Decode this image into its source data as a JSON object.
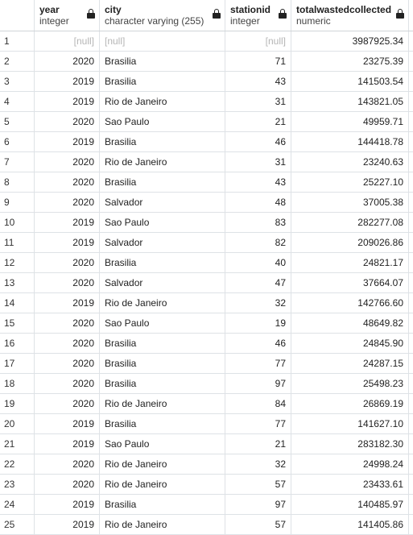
{
  "columns": [
    {
      "name": "year",
      "type": "integer"
    },
    {
      "name": "city",
      "type": "character varying (255)"
    },
    {
      "name": "stationid",
      "type": "integer"
    },
    {
      "name": "totalwastedcollected",
      "type": "numeric"
    }
  ],
  "null_label": "[null]",
  "rows": [
    {
      "n": "1",
      "year": "[null]",
      "city": "[null]",
      "stationid": "[null]",
      "total": "3987925.34"
    },
    {
      "n": "2",
      "year": "2020",
      "city": "Brasilia",
      "stationid": "71",
      "total": "23275.39"
    },
    {
      "n": "3",
      "year": "2019",
      "city": "Brasilia",
      "stationid": "43",
      "total": "141503.54"
    },
    {
      "n": "4",
      "year": "2019",
      "city": "Rio de Janeiro",
      "stationid": "31",
      "total": "143821.05"
    },
    {
      "n": "5",
      "year": "2020",
      "city": "Sao Paulo",
      "stationid": "21",
      "total": "49959.71"
    },
    {
      "n": "6",
      "year": "2019",
      "city": "Brasilia",
      "stationid": "46",
      "total": "144418.78"
    },
    {
      "n": "7",
      "year": "2020",
      "city": "Rio de Janeiro",
      "stationid": "31",
      "total": "23240.63"
    },
    {
      "n": "8",
      "year": "2020",
      "city": "Brasilia",
      "stationid": "43",
      "total": "25227.10"
    },
    {
      "n": "9",
      "year": "2020",
      "city": "Salvador",
      "stationid": "48",
      "total": "37005.38"
    },
    {
      "n": "10",
      "year": "2019",
      "city": "Sao Paulo",
      "stationid": "83",
      "total": "282277.08"
    },
    {
      "n": "11",
      "year": "2019",
      "city": "Salvador",
      "stationid": "82",
      "total": "209026.86"
    },
    {
      "n": "12",
      "year": "2020",
      "city": "Brasilia",
      "stationid": "40",
      "total": "24821.17"
    },
    {
      "n": "13",
      "year": "2020",
      "city": "Salvador",
      "stationid": "47",
      "total": "37664.07"
    },
    {
      "n": "14",
      "year": "2019",
      "city": "Rio de Janeiro",
      "stationid": "32",
      "total": "142766.60"
    },
    {
      "n": "15",
      "year": "2020",
      "city": "Sao Paulo",
      "stationid": "19",
      "total": "48649.82"
    },
    {
      "n": "16",
      "year": "2020",
      "city": "Brasilia",
      "stationid": "46",
      "total": "24845.90"
    },
    {
      "n": "17",
      "year": "2020",
      "city": "Brasilia",
      "stationid": "77",
      "total": "24287.15"
    },
    {
      "n": "18",
      "year": "2020",
      "city": "Brasilia",
      "stationid": "97",
      "total": "25498.23"
    },
    {
      "n": "19",
      "year": "2020",
      "city": "Rio de Janeiro",
      "stationid": "84",
      "total": "26869.19"
    },
    {
      "n": "20",
      "year": "2019",
      "city": "Brasilia",
      "stationid": "77",
      "total": "141627.10"
    },
    {
      "n": "21",
      "year": "2019",
      "city": "Sao Paulo",
      "stationid": "21",
      "total": "283182.30"
    },
    {
      "n": "22",
      "year": "2020",
      "city": "Rio de Janeiro",
      "stationid": "32",
      "total": "24998.24"
    },
    {
      "n": "23",
      "year": "2020",
      "city": "Rio de Janeiro",
      "stationid": "57",
      "total": "23433.61"
    },
    {
      "n": "24",
      "year": "2019",
      "city": "Brasilia",
      "stationid": "97",
      "total": "140485.97"
    },
    {
      "n": "25",
      "year": "2019",
      "city": "Rio de Janeiro",
      "stationid": "57",
      "total": "141405.86"
    }
  ],
  "colors": {
    "grid_line": "#dee2e6",
    "null_text": "#b5b5b5",
    "text": "#222222"
  },
  "icons": {
    "column_lock": "lock-icon"
  }
}
